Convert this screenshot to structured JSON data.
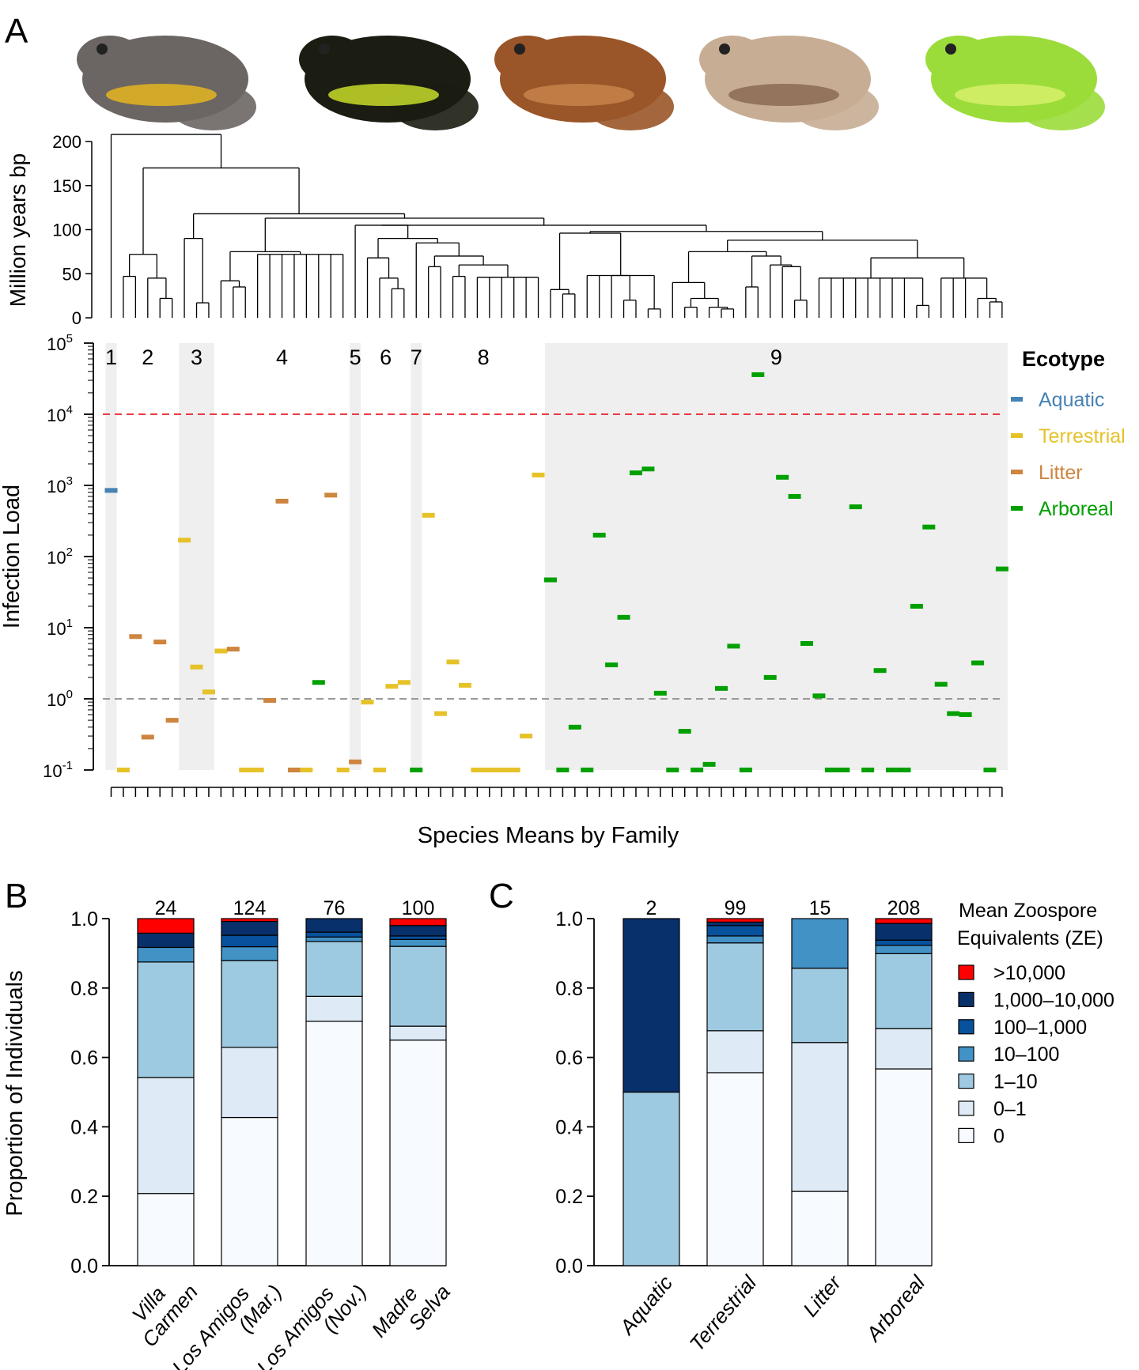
{
  "panel_labels": {
    "a": "A",
    "b": "B",
    "c": "C"
  },
  "photos": [
    {
      "icon": "frog-photo-gray-yellow-belly",
      "body": "#6b6664",
      "accent": "#e5b51e"
    },
    {
      "icon": "frog-photo-black-yellow-striped",
      "body": "#1b1d12",
      "accent": "#c8dc2a"
    },
    {
      "icon": "frog-photo-brown-horned",
      "body": "#9a5528",
      "accent": "#c78449"
    },
    {
      "icon": "frog-photo-tan-treefrog",
      "body": "#c7ad94",
      "accent": "#8b6a52"
    },
    {
      "icon": "frog-photo-green-glassfrog",
      "body": "#9bdc3a",
      "accent": "#d7f06a"
    }
  ],
  "dendrogram": {
    "ylabel": "Million years bp",
    "yticks": [
      0,
      50,
      100,
      150,
      200
    ],
    "tree": [
      208,
      "L",
      [
        170,
        [
          72,
          [
            47,
            "L",
            "L"
          ],
          [
            45,
            "L",
            [
              22,
              "L",
              "L"
            ]
          ]
        ],
        [
          118,
          [
            90,
            "L",
            [
              17,
              "L",
              "L"
            ]
          ],
          [
            113,
            [
              75,
              [
                42,
                "L",
                [
                  35,
                  "L",
                  "L"
                ]
              ],
              [
                72,
                "L",
                "L",
                "L",
                "L",
                "L",
                "L",
                "L",
                "L"
              ]
            ],
            [
              105,
              [
                105,
                "L",
                [
                  90,
                  [
                    68,
                    "L",
                    [
                      45,
                      "L",
                      [
                        33,
                        "L",
                        "L"
                      ]
                    ]
                  ],
                  [
                    85,
                    "L",
                    [
                      70,
                      [
                        58,
                        "L",
                        "L"
                      ],
                      [
                        60,
                        [
                          47,
                          "L",
                          "L"
                        ],
                        [
                          46,
                          "L",
                          "L",
                          "L",
                          "L",
                          "L",
                          "L"
                        ]
                      ]
                    ]
                  ]
                ]
              ],
              [
                98,
                [
                  96,
                  [
                    32,
                    "L",
                    [
                      27,
                      "L",
                      "L"
                    ]
                  ],
                  [
                    48,
                    "L",
                    "L",
                    [
                      48,
                      "L",
                      [
                        20,
                        "L",
                        "L"
                      ]
                    ],
                    [
                      10,
                      "L",
                      "L"
                    ]
                  ]
                ],
                [
                  88,
                  [
                    75,
                    [
                      40,
                      "L",
                      [
                        22,
                        [
                          12,
                          "L",
                          "L"
                        ],
                        [
                          12,
                          "L",
                          [
                            10,
                            "L",
                            "L"
                          ]
                        ]
                      ]
                    ],
                    [
                      70,
                      [
                        35,
                        "L",
                        "L"
                      ],
                      [
                        60,
                        "L",
                        [
                          58,
                          "L",
                          [
                            20,
                            "L",
                            "L"
                          ]
                        ]
                      ]
                    ]
                  ],
                  [
                    68,
                    [
                      45,
                      "L",
                      "L",
                      "L",
                      "L",
                      "L",
                      "L",
                      "L",
                      "L",
                      [
                        14,
                        "L",
                        "L"
                      ]
                    ],
                    [
                      45,
                      "L",
                      "L",
                      "L",
                      [
                        22,
                        "L",
                        [
                          18,
                          "L",
                          "L"
                        ]
                      ]
                    ]
                  ]
                ]
              ]
            ]
          ]
        ]
      ]
    ]
  },
  "legend_ecotype": {
    "title": "Ecotype",
    "items": [
      {
        "label": "Aquatic",
        "color": "#4682b4"
      },
      {
        "label": "Terrestrial",
        "color": "#e6c229"
      },
      {
        "label": "Litter",
        "color": "#cd853f"
      },
      {
        "label": "Arboreal",
        "color": "#00a000"
      }
    ]
  },
  "legend_ze": {
    "title_lines": [
      "Mean Zoospore",
      "Equivalents (ZE)"
    ],
    "items": [
      {
        "label": ">10,000",
        "color": "#ff0000"
      },
      {
        "label": "1,000–10,000",
        "color": "#08306b"
      },
      {
        "label": "100–1,000",
        "color": "#08519c"
      },
      {
        "label": "10–100",
        "color": "#4292c6"
      },
      {
        "label": "1–10",
        "color": "#9ecae1"
      },
      {
        "label": "0–1",
        "color": "#deebf7"
      },
      {
        "label": "0",
        "color": "#f7fbff"
      }
    ]
  },
  "chart_data": [
    {
      "type": "scatter",
      "ylabel": "Infection Load",
      "xlabel": "Species Means by Family",
      "yscale": "log",
      "ylim": [
        0.1,
        100000
      ],
      "ytick_exponents": [
        -1,
        0,
        1,
        2,
        3,
        4,
        5
      ],
      "reference_lines": [
        {
          "value": 10000,
          "color": "#e8202a"
        },
        {
          "value": 1,
          "color": "#8c8c8c"
        }
      ],
      "families": [
        {
          "label": "1",
          "first": 0,
          "last": 0,
          "shaded": true
        },
        {
          "label": "2",
          "first": 1,
          "last": 5,
          "shaded": false
        },
        {
          "label": "3",
          "first": 6,
          "last": 8,
          "shaded": true
        },
        {
          "label": "4",
          "first": 9,
          "last": 19,
          "shaded": false
        },
        {
          "label": "5",
          "first": 20,
          "last": 20,
          "shaded": true
        },
        {
          "label": "6",
          "first": 21,
          "last": 24,
          "shaded": false
        },
        {
          "label": "7",
          "first": 25,
          "last": 25,
          "shaded": true
        },
        {
          "label": "8",
          "first": 26,
          "last": 35,
          "shaded": false
        },
        {
          "label": "9",
          "first": 36,
          "last": 73,
          "shaded": true
        }
      ],
      "species_ecotype": [
        "Aquatic",
        "Terrestrial",
        "Litter",
        "Litter",
        "Litter",
        "Litter",
        "Terrestrial",
        "Terrestrial",
        "Terrestrial",
        "Terrestrial",
        "Litter",
        "Terrestrial",
        "Terrestrial",
        "Litter",
        "Litter",
        "Litter",
        "Terrestrial",
        "Arboreal",
        "Litter",
        "Terrestrial",
        "Litter",
        "Terrestrial",
        "Terrestrial",
        "Terrestrial",
        "Terrestrial",
        "Arboreal",
        "Terrestrial",
        "Terrestrial",
        "Terrestrial",
        "Terrestrial",
        "Terrestrial",
        "Terrestrial",
        "Terrestrial",
        "Terrestrial",
        "Terrestrial",
        "Terrestrial",
        "Arboreal",
        "Arboreal",
        "Arboreal",
        "Arboreal",
        "Arboreal",
        "Arboreal",
        "Arboreal",
        "Arboreal",
        "Arboreal",
        "Arboreal",
        "Arboreal",
        "Arboreal",
        "Arboreal",
        "Arboreal",
        "Arboreal",
        "Arboreal",
        "Arboreal",
        "Arboreal",
        "Arboreal",
        "Arboreal",
        "Arboreal",
        "Arboreal",
        "Arboreal",
        "Arboreal",
        "Arboreal",
        "Arboreal",
        "Arboreal",
        "Arboreal",
        "Arboreal",
        "Arboreal",
        "Arboreal",
        "Arboreal",
        "Arboreal",
        "Arboreal",
        "Arboreal",
        "Arboreal",
        "Arboreal",
        "Arboreal"
      ],
      "species_mean": [
        850,
        0.1,
        7.5,
        0.29,
        6.3,
        0.5,
        170,
        2.8,
        1.25,
        4.7,
        5,
        0.1,
        0.1,
        0.95,
        600,
        0.1,
        0.1,
        1.7,
        730,
        0.1,
        0.13,
        0.9,
        0.1,
        1.5,
        1.7,
        0.1,
        380,
        0.62,
        3.3,
        1.55,
        0.1,
        0.1,
        0.1,
        0.1,
        0.3,
        1400,
        47,
        0.1,
        0.4,
        0.1,
        200,
        3,
        14,
        1500,
        1700,
        1.2,
        0.1,
        0.35,
        0.1,
        0.12,
        1.4,
        5.5,
        0.1,
        36000,
        2,
        1300,
        700,
        6,
        1.1,
        0.1,
        0.1,
        500,
        0.1,
        2.5,
        0.1,
        0.1,
        20,
        260,
        1.6,
        0.62,
        0.6,
        3.2,
        0.1,
        67
      ]
    },
    {
      "type": "bar",
      "stacked": true,
      "ylabel": "Proportion of Individuals",
      "ylim": [
        0,
        1
      ],
      "yticks": [
        "0.0",
        "0.2",
        "0.4",
        "0.6",
        "0.8",
        "1.0"
      ],
      "categories": [
        {
          "lines": [
            "Villa",
            "Carmen"
          ],
          "n": "24",
          "values": [
            0.208,
            0.334,
            0.333,
            0.042,
            0,
            0.041,
            0.042
          ]
        },
        {
          "lines": [
            "Los Amigos",
            "(Mar.)"
          ],
          "n": "124",
          "values": [
            0.427,
            0.202,
            0.25,
            0.04,
            0.033,
            0.04,
            0.008
          ]
        },
        {
          "lines": [
            "Los Amigos",
            "(Nov.)"
          ],
          "n": "76",
          "values": [
            0.704,
            0.072,
            0.158,
            0.013,
            0.014,
            0.039,
            0
          ]
        },
        {
          "lines": [
            "Madre",
            "Selva"
          ],
          "n": "100",
          "values": [
            0.65,
            0.04,
            0.23,
            0.02,
            0.01,
            0.03,
            0.02
          ]
        }
      ],
      "series_order": [
        "0",
        "0–1",
        "1–10",
        "10–100",
        "100–1,000",
        "1,000–10,000",
        ">10,000"
      ]
    },
    {
      "type": "bar",
      "stacked": true,
      "ylim": [
        0,
        1
      ],
      "yticks": [
        "0.0",
        "0.2",
        "0.4",
        "0.6",
        "0.8",
        "1.0"
      ],
      "categories": [
        {
          "lines": [
            "Aquatic"
          ],
          "n": "2",
          "values": [
            0,
            0,
            0.5,
            0,
            0,
            0.5,
            0
          ]
        },
        {
          "lines": [
            "Terrestrial"
          ],
          "n": "99",
          "values": [
            0.556,
            0.121,
            0.253,
            0.02,
            0.03,
            0.01,
            0.01
          ]
        },
        {
          "lines": [
            "Litter"
          ],
          "n": "15",
          "values": [
            0.214,
            0.429,
            0.214,
            0.143,
            0,
            0,
            0
          ]
        },
        {
          "lines": [
            "Arboreal"
          ],
          "n": "208",
          "values": [
            0.567,
            0.116,
            0.216,
            0.024,
            0.015,
            0.048,
            0.014
          ]
        }
      ],
      "series_order": [
        "0",
        "0–1",
        "1–10",
        "10–100",
        "100–1,000",
        "1,000–10,000",
        ">10,000"
      ]
    }
  ]
}
